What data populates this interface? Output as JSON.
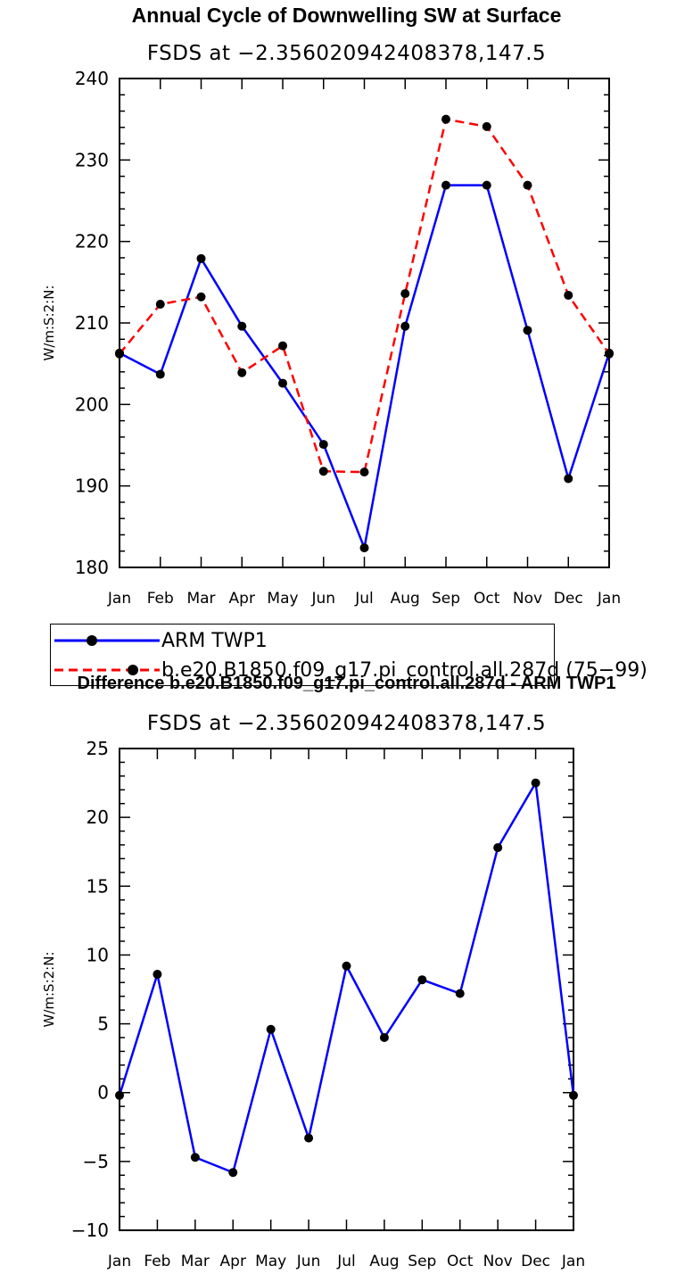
{
  "chart_data": [
    {
      "type": "line",
      "title": "Annual Cycle of Downwelling SW at Surface",
      "subtitle": "FSDS at −2.356020942408378,147.5",
      "ylabel": "W/m:S:2:N:",
      "xlabel": "",
      "categories": [
        "Jan",
        "Feb",
        "Mar",
        "Apr",
        "May",
        "Jun",
        "Jul",
        "Aug",
        "Sep",
        "Oct",
        "Nov",
        "Dec",
        "Jan"
      ],
      "ylim": [
        180,
        240
      ],
      "yticks": [
        180,
        190,
        200,
        210,
        220,
        230,
        240
      ],
      "series": [
        {
          "name": "ARM TWP1",
          "color": "#0000ff",
          "style": "solid",
          "values": [
            206.3,
            203.7,
            217.9,
            209.6,
            202.6,
            195.1,
            182.4,
            209.6,
            226.9,
            226.9,
            209.1,
            190.9,
            206.3
          ]
        },
        {
          "name": "b.e20.B1850.f09_g17.pi_control.all.287d (75−99)",
          "color": "#ff0000",
          "style": "dashed",
          "values": [
            206.2,
            212.3,
            213.2,
            203.9,
            207.2,
            191.8,
            191.7,
            213.6,
            235.0,
            234.1,
            226.9,
            213.4,
            206.2
          ]
        }
      ]
    },
    {
      "type": "line",
      "title": "Difference b.e20.B1850.f09_g17.pi_control.all.287d - ARM TWP1",
      "subtitle": "FSDS at −2.356020942408378,147.5",
      "ylabel": "W/m:S:2:N:",
      "xlabel": "",
      "categories": [
        "Jan",
        "Feb",
        "Mar",
        "Apr",
        "May",
        "Jun",
        "Jul",
        "Aug",
        "Sep",
        "Oct",
        "Nov",
        "Dec",
        "Jan"
      ],
      "ylim": [
        -10,
        25
      ],
      "yticks": [
        -10,
        -5,
        0,
        5,
        10,
        15,
        20,
        25
      ],
      "series": [
        {
          "name": "Difference",
          "color": "#0000ff",
          "style": "solid",
          "values": [
            -0.2,
            8.6,
            -4.7,
            -5.8,
            4.6,
            -3.3,
            9.2,
            4.0,
            8.2,
            7.2,
            17.8,
            22.5,
            -0.2
          ]
        }
      ]
    }
  ]
}
